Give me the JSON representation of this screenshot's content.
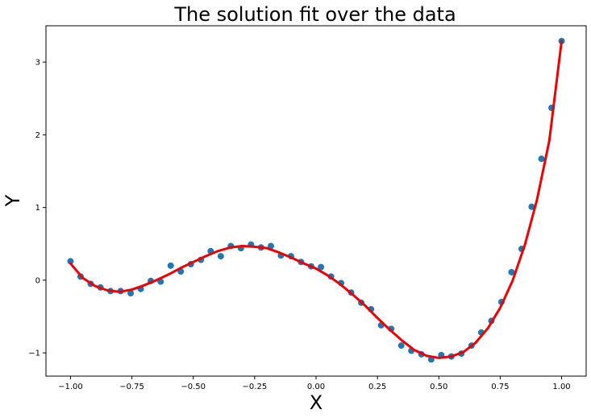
{
  "chart_data": {
    "type": "scatter",
    "title": "The solution fit over the data",
    "xlabel": "X",
    "ylabel": "Y",
    "xlim": [
      -1.1,
      1.1
    ],
    "ylim": [
      -1.32,
      3.5
    ],
    "xticks": [
      -1.0,
      -0.75,
      -0.5,
      -0.25,
      0.0,
      0.25,
      0.5,
      0.75,
      1.0
    ],
    "xtick_labels": [
      "−1.00",
      "−0.75",
      "−0.50",
      "−0.25",
      "0.00",
      "0.25",
      "0.50",
      "0.75",
      "1.00"
    ],
    "yticks": [
      -1,
      0,
      1,
      2,
      3
    ],
    "ytick_labels": [
      "−1",
      "0",
      "1",
      "2",
      "3"
    ],
    "grid": false,
    "colors": {
      "points": "#1f77b4",
      "fit": "#ee0000"
    },
    "series": [
      {
        "kind": "points",
        "x": [
          -1.0,
          -0.959,
          -0.918,
          -0.878,
          -0.837,
          -0.796,
          -0.755,
          -0.714,
          -0.673,
          -0.633,
          -0.592,
          -0.551,
          -0.51,
          -0.469,
          -0.429,
          -0.388,
          -0.347,
          -0.306,
          -0.265,
          -0.224,
          -0.184,
          -0.143,
          -0.102,
          -0.061,
          -0.02,
          0.02,
          0.061,
          0.102,
          0.143,
          0.184,
          0.224,
          0.265,
          0.306,
          0.347,
          0.388,
          0.429,
          0.469,
          0.51,
          0.551,
          0.592,
          0.633,
          0.673,
          0.714,
          0.755,
          0.796,
          0.837,
          0.878,
          0.918,
          0.959,
          1.0
        ],
        "y": [
          0.26,
          0.05,
          -0.05,
          -0.1,
          -0.15,
          -0.15,
          -0.18,
          -0.12,
          -0.01,
          -0.02,
          0.2,
          0.12,
          0.22,
          0.28,
          0.4,
          0.33,
          0.47,
          0.44,
          0.49,
          0.45,
          0.47,
          0.34,
          0.33,
          0.25,
          0.19,
          0.18,
          0.05,
          -0.04,
          -0.17,
          -0.31,
          -0.4,
          -0.62,
          -0.67,
          -0.9,
          -0.97,
          -1.02,
          -1.09,
          -1.03,
          -1.05,
          -1.01,
          -0.9,
          -0.72,
          -0.56,
          -0.3,
          0.11,
          0.43,
          1.01,
          1.67,
          2.37,
          3.29
        ]
      },
      {
        "kind": "fit-curve",
        "x": [
          -1.0,
          -0.95,
          -0.9,
          -0.85,
          -0.8,
          -0.75,
          -0.7,
          -0.65,
          -0.6,
          -0.55,
          -0.5,
          -0.45,
          -0.4,
          -0.35,
          -0.3,
          -0.25,
          -0.2,
          -0.15,
          -0.1,
          -0.05,
          0.0,
          0.05,
          0.1,
          0.15,
          0.2,
          0.25,
          0.3,
          0.35,
          0.4,
          0.45,
          0.5,
          0.55,
          0.6,
          0.65,
          0.7,
          0.75,
          0.8,
          0.85,
          0.9,
          0.95,
          1.0
        ],
        "y": [
          0.23,
          0.03,
          -0.08,
          -0.14,
          -0.16,
          -0.13,
          -0.07,
          0.0,
          0.08,
          0.17,
          0.25,
          0.33,
          0.4,
          0.45,
          0.47,
          0.46,
          0.44,
          0.38,
          0.31,
          0.23,
          0.16,
          0.06,
          -0.06,
          -0.2,
          -0.35,
          -0.52,
          -0.68,
          -0.83,
          -0.96,
          -1.04,
          -1.07,
          -1.05,
          -0.99,
          -0.86,
          -0.66,
          -0.38,
          -0.01,
          0.48,
          1.11,
          1.92,
          3.29
        ]
      }
    ]
  }
}
